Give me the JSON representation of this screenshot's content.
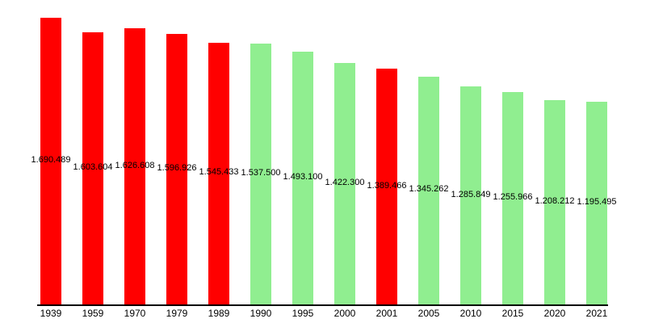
{
  "chart_data": {
    "type": "bar",
    "title": "",
    "xlabel": "",
    "ylabel": "",
    "categories": [
      "1939",
      "1959",
      "1970",
      "1979",
      "1989",
      "1990",
      "1995",
      "2000",
      "2001",
      "2005",
      "2010",
      "2015",
      "2020",
      "2021"
    ],
    "values": [
      1690489,
      1603604,
      1626608,
      1596926,
      1545433,
      1537500,
      1493100,
      1422300,
      1389466,
      1345262,
      1285849,
      1255966,
      1208212,
      1195495
    ],
    "value_labels": [
      "1.690.489",
      "1.603.604",
      "1.626.608",
      "1.596.926",
      "1.545.433",
      "1.537.500",
      "1.493.100",
      "1.422.300",
      "1.389.466",
      "1.345.262",
      "1.285.849",
      "1.255.966",
      "1.208.212",
      "1.195.495"
    ],
    "bar_colors": [
      "#FF0000",
      "#FF0000",
      "#FF0000",
      "#FF0000",
      "#FF0000",
      "#90EE90",
      "#90EE90",
      "#90EE90",
      "#FF0000",
      "#90EE90",
      "#90EE90",
      "#90EE90",
      "#90EE90",
      "#90EE90"
    ],
    "colors": {
      "red_bar": "#FF0000",
      "green_bar": "#90EE90",
      "axis": "#000000",
      "text": "#000000",
      "background": "#FFFFFF"
    },
    "ylim": [
      0,
      1800000
    ],
    "grid": false,
    "legend": "none"
  }
}
